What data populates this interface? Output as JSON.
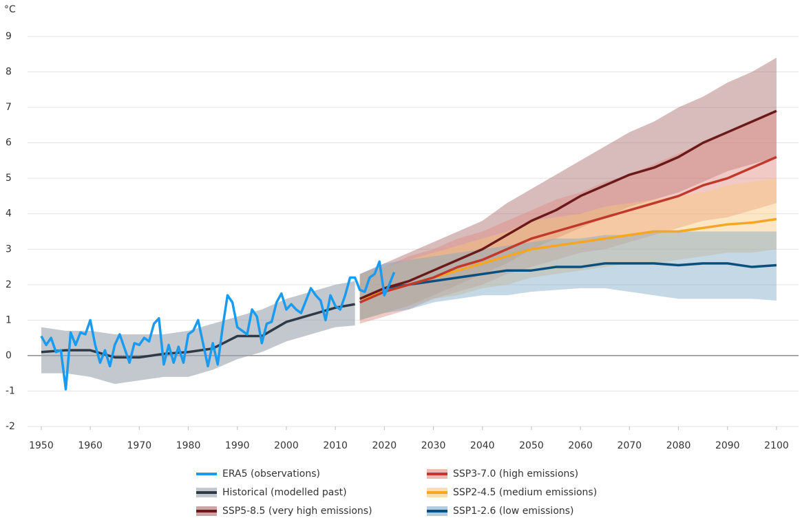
{
  "chart_data": {
    "type": "line",
    "y_label": "°C",
    "xlim": [
      1947.2,
      2104.5
    ],
    "ylim": [
      -2,
      9
    ],
    "xticks": [
      1950,
      1960,
      1970,
      1980,
      1990,
      2000,
      2010,
      2020,
      2030,
      2040,
      2050,
      2060,
      2070,
      2080,
      2090,
      2100
    ],
    "yticks": [
      -2,
      -1,
      0,
      1,
      2,
      3,
      4,
      5,
      6,
      7,
      8,
      9
    ],
    "grid": true,
    "series": [
      {
        "name": "ERA5 (observations)",
        "color": "#1a9bf0",
        "x": [
          1950,
          1951,
          1952,
          1953,
          1954,
          1955,
          1956,
          1957,
          1958,
          1959,
          1960,
          1961,
          1962,
          1963,
          1964,
          1965,
          1966,
          1967,
          1968,
          1969,
          1970,
          1971,
          1972,
          1973,
          1974,
          1975,
          1976,
          1977,
          1978,
          1979,
          1980,
          1981,
          1982,
          1983,
          1984,
          1985,
          1986,
          1987,
          1988,
          1989,
          1990,
          1991,
          1992,
          1993,
          1994,
          1995,
          1996,
          1997,
          1998,
          1999,
          2000,
          2001,
          2002,
          2003,
          2004,
          2005,
          2006,
          2007,
          2008,
          2009,
          2010,
          2011,
          2012,
          2013,
          2014,
          2015,
          2016,
          2017,
          2018,
          2019,
          2020,
          2021,
          2022
        ],
        "values": [
          0.55,
          0.3,
          0.5,
          0.1,
          0.15,
          -0.95,
          0.65,
          0.3,
          0.65,
          0.6,
          1.0,
          0.3,
          -0.2,
          0.15,
          -0.3,
          0.3,
          0.6,
          0.2,
          -0.2,
          0.35,
          0.3,
          0.5,
          0.4,
          0.9,
          1.05,
          -0.25,
          0.3,
          -0.2,
          0.25,
          -0.2,
          0.6,
          0.7,
          1.0,
          0.35,
          -0.3,
          0.35,
          -0.25,
          0.8,
          1.7,
          1.5,
          0.8,
          0.7,
          0.6,
          1.3,
          1.1,
          0.35,
          0.9,
          0.95,
          1.5,
          1.75,
          1.3,
          1.45,
          1.3,
          1.2,
          1.55,
          1.9,
          1.7,
          1.55,
          1.0,
          1.7,
          1.4,
          1.3,
          1.7,
          2.2,
          2.2,
          1.85,
          1.8,
          2.2,
          2.3,
          2.65,
          1.7,
          2.0,
          2.35
        ]
      },
      {
        "name": "Historical (modelled past)",
        "color": "#2e3a46",
        "band_color": "#9aa3ab",
        "x": [
          1950,
          1955,
          1960,
          1965,
          1970,
          1975,
          1980,
          1985,
          1990,
          1995,
          2000,
          2005,
          2010,
          2014
        ],
        "values": [
          0.1,
          0.15,
          0.15,
          -0.05,
          -0.05,
          0.05,
          0.1,
          0.2,
          0.55,
          0.55,
          0.95,
          1.15,
          1.35,
          1.45
        ],
        "lower": [
          -0.5,
          -0.5,
          -0.6,
          -0.8,
          -0.7,
          -0.6,
          -0.6,
          -0.4,
          -0.1,
          0.1,
          0.4,
          0.6,
          0.8,
          0.85
        ],
        "upper": [
          0.8,
          0.7,
          0.7,
          0.6,
          0.6,
          0.6,
          0.7,
          0.9,
          1.1,
          1.3,
          1.6,
          1.8,
          2.0,
          2.1
        ]
      },
      {
        "name": "SSP5-8.5 (very high emissions)",
        "color": "#6b1a1a",
        "band_color": "#a86a6a",
        "x": [
          2015,
          2020,
          2025,
          2030,
          2035,
          2040,
          2045,
          2050,
          2055,
          2060,
          2065,
          2070,
          2075,
          2080,
          2085,
          2090,
          2095,
          2100
        ],
        "values": [
          1.6,
          1.9,
          2.1,
          2.4,
          2.7,
          3.0,
          3.4,
          3.8,
          4.1,
          4.5,
          4.8,
          5.1,
          5.3,
          5.6,
          6.0,
          6.3,
          6.6,
          6.9
        ],
        "lower": [
          1.0,
          1.2,
          1.4,
          1.7,
          2.0,
          2.3,
          2.6,
          3.0,
          3.3,
          3.6,
          3.9,
          4.2,
          4.4,
          4.6,
          4.9,
          5.2,
          5.4,
          5.6
        ],
        "upper": [
          2.3,
          2.6,
          2.9,
          3.2,
          3.5,
          3.8,
          4.3,
          4.7,
          5.1,
          5.5,
          5.9,
          6.3,
          6.6,
          7.0,
          7.3,
          7.7,
          8.0,
          8.4
        ]
      },
      {
        "name": "SSP3-7.0 (high emissions)",
        "color": "#c0392b",
        "band_color": "#e08a80",
        "x": [
          2015,
          2020,
          2025,
          2030,
          2035,
          2040,
          2045,
          2050,
          2055,
          2060,
          2065,
          2070,
          2075,
          2080,
          2085,
          2090,
          2095,
          2100
        ],
        "values": [
          1.5,
          1.8,
          2.0,
          2.2,
          2.5,
          2.7,
          3.0,
          3.3,
          3.5,
          3.7,
          3.9,
          4.1,
          4.3,
          4.5,
          4.8,
          5.0,
          5.3,
          5.6
        ],
        "lower": [
          0.9,
          1.1,
          1.3,
          1.6,
          1.8,
          2.0,
          2.3,
          2.5,
          2.7,
          2.9,
          3.0,
          3.2,
          3.4,
          3.6,
          3.8,
          3.9,
          4.1,
          4.3
        ],
        "upper": [
          2.3,
          2.5,
          2.8,
          3.0,
          3.3,
          3.5,
          3.8,
          4.1,
          4.4,
          4.6,
          4.9,
          5.1,
          5.4,
          5.7,
          6.0,
          6.3,
          6.6,
          6.9
        ]
      },
      {
        "name": "SSP2-4.5 (medium emissions)",
        "color": "#f5a623",
        "band_color": "#f8c77a",
        "x": [
          2015,
          2020,
          2025,
          2030,
          2035,
          2040,
          2045,
          2050,
          2055,
          2060,
          2065,
          2070,
          2075,
          2080,
          2085,
          2090,
          2095,
          2100
        ],
        "values": [
          1.6,
          1.8,
          2.0,
          2.2,
          2.4,
          2.6,
          2.8,
          3.0,
          3.1,
          3.2,
          3.3,
          3.4,
          3.5,
          3.5,
          3.6,
          3.7,
          3.75,
          3.85
        ],
        "lower": [
          1.0,
          1.2,
          1.4,
          1.6,
          1.7,
          1.9,
          2.0,
          2.2,
          2.3,
          2.4,
          2.5,
          2.6,
          2.6,
          2.7,
          2.8,
          2.9,
          2.9,
          3.0
        ],
        "upper": [
          2.3,
          2.5,
          2.7,
          2.9,
          3.1,
          3.3,
          3.5,
          3.8,
          3.9,
          4.0,
          4.2,
          4.3,
          4.4,
          4.5,
          4.6,
          4.8,
          4.9,
          5.0
        ]
      },
      {
        "name": "SSP1-2.6 (low emissions)",
        "color": "#0b4f7c",
        "band_color": "#7fa9c8",
        "x": [
          2015,
          2020,
          2025,
          2030,
          2035,
          2040,
          2045,
          2050,
          2055,
          2060,
          2065,
          2070,
          2075,
          2080,
          2085,
          2090,
          2095,
          2100
        ],
        "values": [
          1.6,
          1.9,
          2.0,
          2.1,
          2.2,
          2.3,
          2.4,
          2.4,
          2.5,
          2.5,
          2.6,
          2.6,
          2.6,
          2.55,
          2.6,
          2.6,
          2.5,
          2.55
        ],
        "lower": [
          1.0,
          1.2,
          1.3,
          1.5,
          1.6,
          1.7,
          1.7,
          1.8,
          1.85,
          1.9,
          1.9,
          1.8,
          1.7,
          1.6,
          1.6,
          1.6,
          1.6,
          1.55
        ],
        "upper": [
          2.3,
          2.6,
          2.7,
          2.8,
          2.9,
          3.0,
          3.1,
          3.2,
          3.3,
          3.3,
          3.4,
          3.4,
          3.5,
          3.5,
          3.5,
          3.5,
          3.5,
          3.5
        ]
      }
    ]
  }
}
